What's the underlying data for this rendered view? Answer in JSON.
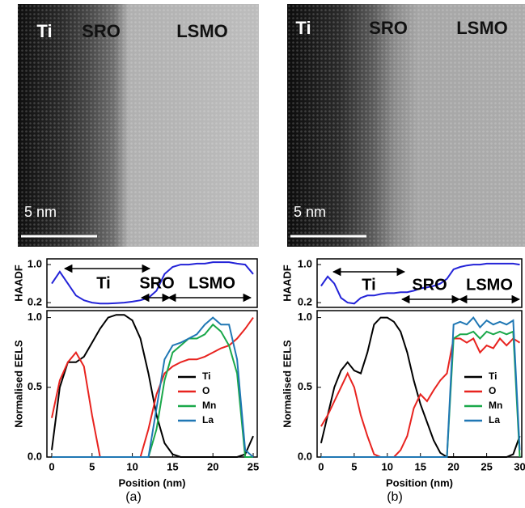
{
  "panels": [
    {
      "label": "(a)",
      "image": {
        "labels": [
          "Ti",
          "SRO",
          "LSMO"
        ],
        "scale_bar": "5 nm"
      },
      "haadf": {
        "type": "line",
        "ylabel": "HAADF",
        "color": "#2323d8",
        "x": [
          0,
          1,
          2,
          3,
          4,
          5,
          6,
          7,
          8,
          9,
          10,
          11,
          12,
          13,
          14,
          15,
          16,
          17,
          18,
          19,
          20,
          21,
          22,
          23,
          24,
          25
        ],
        "values": [
          0.6,
          0.85,
          0.6,
          0.35,
          0.25,
          0.2,
          0.18,
          0.18,
          0.19,
          0.2,
          0.22,
          0.25,
          0.3,
          0.45,
          0.8,
          0.95,
          1.0,
          1.0,
          1.02,
          1.02,
          1.05,
          1.05,
          1.05,
          1.02,
          1.0,
          0.8
        ],
        "xlim": [
          -0.6,
          25.5
        ],
        "ylim": [
          0.1,
          1.12
        ],
        "yticks": [
          0.2,
          {
            "value": 1,
            "label": "1.0"
          }
        ],
        "annotations": [
          "Ti",
          "SRO",
          "LSMO"
        ]
      },
      "eels": {
        "type": "line",
        "ylabel": "Normalised EELS",
        "xlabel": "Position (nm)",
        "x": [
          0,
          1,
          2,
          3,
          4,
          5,
          6,
          7,
          8,
          9,
          10,
          11,
          12,
          13,
          14,
          15,
          16,
          17,
          18,
          19,
          20,
          21,
          22,
          23,
          24,
          25
        ],
        "xlim": [
          -0.6,
          25.5
        ],
        "ylim": [
          0,
          1.05
        ],
        "xticks": [
          0,
          5,
          10,
          15,
          20,
          25
        ],
        "yticks": [
          {
            "value": 0,
            "label": "0.0"
          },
          0.5,
          {
            "value": 1,
            "label": "1.0"
          }
        ],
        "series": [
          {
            "name": "Ti",
            "color": "#000000",
            "values": [
              0.05,
              0.5,
              0.68,
              0.68,
              0.72,
              0.82,
              0.92,
              1.0,
              1.02,
              1.02,
              0.98,
              0.85,
              0.6,
              0.3,
              0.1,
              0.02,
              0,
              0,
              0,
              0,
              0,
              0,
              0,
              0,
              0.02,
              0.15
            ]
          },
          {
            "name": "O",
            "color": "#e8231f",
            "values": [
              0.28,
              0.55,
              0.68,
              0.75,
              0.65,
              0.3,
              0,
              0,
              0,
              0,
              0,
              0,
              0.2,
              0.45,
              0.6,
              0.65,
              0.68,
              0.7,
              0.7,
              0.72,
              0.75,
              0.78,
              0.8,
              0.85,
              0.92,
              1.0
            ]
          },
          {
            "name": "Mn",
            "color": "#1aa84a",
            "values": [
              0,
              0,
              0,
              0,
              0,
              0,
              0,
              0,
              0,
              0,
              0,
              0,
              0,
              0.2,
              0.55,
              0.75,
              0.8,
              0.85,
              0.85,
              0.88,
              0.95,
              0.9,
              0.8,
              0.6,
              0,
              0
            ]
          },
          {
            "name": "La",
            "color": "#1f77b4",
            "values": [
              0,
              0,
              0,
              0,
              0,
              0,
              0,
              0,
              0,
              0,
              0,
              0,
              0,
              0.35,
              0.7,
              0.8,
              0.82,
              0.85,
              0.88,
              0.95,
              1.0,
              0.95,
              0.95,
              0.7,
              0.05,
              0
            ]
          }
        ]
      }
    },
    {
      "label": "(b)",
      "image": {
        "labels": [
          "Ti",
          "SRO",
          "LSMO"
        ],
        "scale_bar": "5 nm"
      },
      "haadf": {
        "type": "line",
        "ylabel": "HAADF",
        "color": "#2323d8",
        "x": [
          0,
          1,
          2,
          3,
          4,
          5,
          6,
          7,
          8,
          9,
          10,
          11,
          12,
          13,
          14,
          15,
          16,
          17,
          18,
          19,
          20,
          21,
          22,
          23,
          24,
          25,
          26,
          27,
          28,
          29,
          30
        ],
        "values": [
          0.55,
          0.75,
          0.6,
          0.3,
          0.2,
          0.18,
          0.3,
          0.35,
          0.35,
          0.38,
          0.4,
          0.4,
          0.42,
          0.42,
          0.45,
          0.5,
          0.52,
          0.55,
          0.6,
          0.7,
          0.9,
          0.95,
          0.98,
          1.0,
          1.0,
          1.02,
          1.02,
          1.02,
          1.02,
          1.02,
          1.0
        ],
        "xlim": [
          -0.6,
          30.3
        ],
        "ylim": [
          0.1,
          1.12
        ],
        "yticks": [
          0.2,
          {
            "value": 1,
            "label": "1.0"
          }
        ],
        "annotations": [
          "Ti",
          "SRO",
          "LSMO"
        ]
      },
      "eels": {
        "type": "line",
        "ylabel": "Normalised EELS",
        "xlabel": "Position (nm)",
        "x": [
          0,
          1,
          2,
          3,
          4,
          5,
          6,
          7,
          8,
          9,
          10,
          11,
          12,
          13,
          14,
          15,
          16,
          17,
          18,
          19,
          20,
          21,
          22,
          23,
          24,
          25,
          26,
          27,
          28,
          29,
          30
        ],
        "xlim": [
          -0.6,
          30.3
        ],
        "ylim": [
          0,
          1.05
        ],
        "xticks": [
          0,
          5,
          10,
          15,
          20,
          25,
          30
        ],
        "yticks": [
          {
            "value": 0,
            "label": "0.0"
          },
          0.5,
          {
            "value": 1,
            "label": "1.0"
          }
        ],
        "series": [
          {
            "name": "Ti",
            "color": "#000000",
            "values": [
              0.1,
              0.3,
              0.5,
              0.62,
              0.68,
              0.62,
              0.6,
              0.75,
              0.95,
              1.0,
              1.0,
              0.97,
              0.9,
              0.75,
              0.55,
              0.38,
              0.25,
              0.12,
              0.03,
              0,
              0,
              0,
              0,
              0,
              0,
              0,
              0,
              0,
              0,
              0.02,
              0.15
            ]
          },
          {
            "name": "O",
            "color": "#e8231f",
            "values": [
              0.22,
              0.3,
              0.4,
              0.5,
              0.6,
              0.5,
              0.3,
              0.15,
              0.02,
              0,
              0,
              0,
              0.05,
              0.15,
              0.35,
              0.45,
              0.4,
              0.48,
              0.55,
              0.6,
              0.85,
              0.85,
              0.82,
              0.85,
              0.75,
              0.8,
              0.78,
              0.85,
              0.8,
              0.85,
              0.82
            ]
          },
          {
            "name": "Mn",
            "color": "#1aa84a",
            "values": [
              0,
              0,
              0,
              0,
              0,
              0,
              0,
              0,
              0,
              0,
              0,
              0,
              0,
              0,
              0,
              0,
              0,
              0,
              0,
              0,
              0.85,
              0.88,
              0.88,
              0.9,
              0.85,
              0.9,
              0.88,
              0.9,
              0.88,
              0.9,
              0
            ]
          },
          {
            "name": "La",
            "color": "#1f77b4",
            "values": [
              0,
              0,
              0,
              0,
              0,
              0,
              0,
              0,
              0,
              0,
              0,
              0,
              0,
              0,
              0,
              0,
              0,
              0,
              0,
              0,
              0.95,
              0.97,
              0.95,
              1.0,
              0.93,
              0.98,
              0.95,
              0.97,
              0.95,
              0.98,
              0.05
            ]
          }
        ]
      }
    }
  ]
}
